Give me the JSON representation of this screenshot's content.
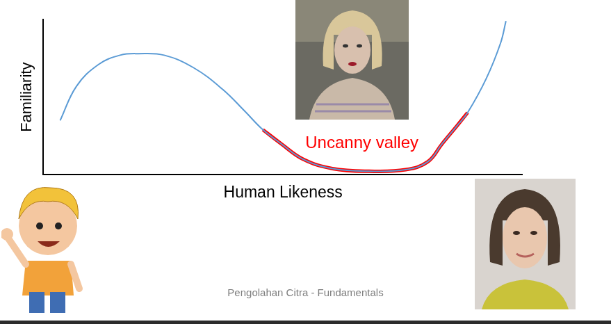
{
  "chart_data": {
    "type": "line",
    "x_label": "Human Likeness",
    "y_label": "Familiarity",
    "annotation": "Uncanny valley",
    "x": [
      3.5,
      6.9,
      11.5,
      16,
      19.8,
      25.2,
      31.3,
      37.4,
      42,
      45.8,
      49.6,
      54.2,
      60.3,
      67.9,
      75.6,
      80.2,
      83.2,
      86.3,
      88.5,
      92.4,
      95.4,
      96.5
    ],
    "series": [
      {
        "color": "#5b9bd5",
        "values": [
          35,
          57,
          71,
          77,
          78,
          77,
          69,
          55,
          41,
          29,
          20,
          10,
          4,
          2.3,
          3.3,
          8.4,
          20,
          31.6,
          40,
          62,
          85,
          99
        ]
      },
      {
        "color": "#ff0000",
        "values": [
          null,
          null,
          null,
          null,
          null,
          null,
          null,
          null,
          null,
          29,
          20,
          10,
          4,
          2.3,
          3.3,
          8.4,
          20,
          31.6,
          40,
          null,
          null,
          null
        ]
      }
    ],
    "xlim": [
      0,
      100
    ],
    "ylim": [
      0,
      100
    ],
    "grid": false,
    "tick_labels": false
  },
  "footer": "Pengolahan Citra - Fundamentals"
}
